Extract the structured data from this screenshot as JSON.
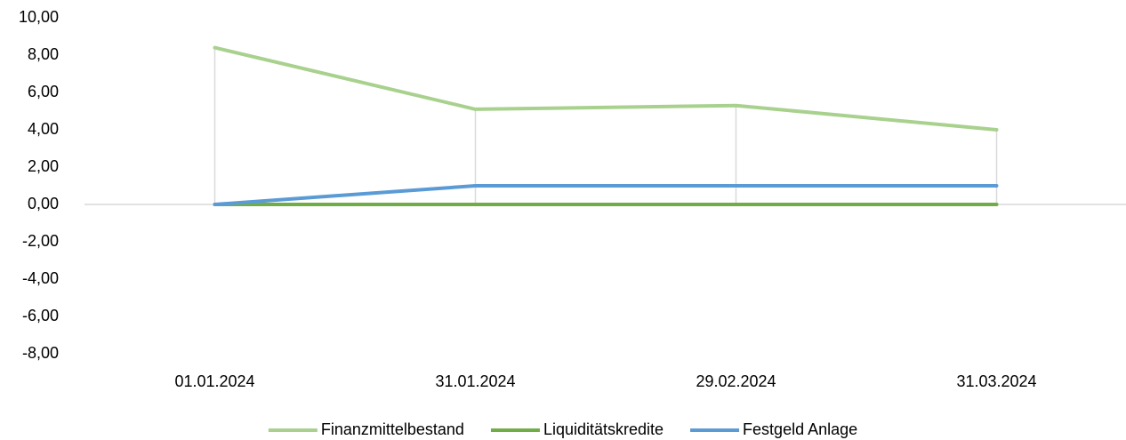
{
  "chart_data": {
    "type": "line",
    "categories": [
      "01.01.2024",
      "31.01.2024",
      "29.02.2024",
      "31.03.2024"
    ],
    "series": [
      {
        "name": "Finanzmittelbestand",
        "color": "#a9d18e",
        "values": [
          8.4,
          5.1,
          5.3,
          4.0
        ]
      },
      {
        "name": "Liquiditätskredite",
        "color": "#70ad47",
        "values": [
          0,
          0,
          0,
          0
        ]
      },
      {
        "name": "Festgeld Anlage",
        "color": "#5b9bd5",
        "values": [
          0,
          1,
          1,
          1
        ]
      }
    ],
    "ylim": [
      -8,
      10
    ],
    "yticks": [
      {
        "value": -8,
        "label": "-8,00"
      },
      {
        "value": -6,
        "label": "-6,00"
      },
      {
        "value": -4,
        "label": "-4,00"
      },
      {
        "value": -2,
        "label": "-2,00"
      },
      {
        "value": 0,
        "label": "0,00"
      },
      {
        "value": 2,
        "label": "2,00"
      },
      {
        "value": 4,
        "label": "4,00"
      },
      {
        "value": 6,
        "label": "6,00"
      },
      {
        "value": 8,
        "label": "8,00"
      },
      {
        "value": 10,
        "label": "10,00"
      }
    ],
    "tick_color": "#000000",
    "negative_tick_color": "#ff0000",
    "drop_lines": true,
    "legend": "bottom"
  }
}
